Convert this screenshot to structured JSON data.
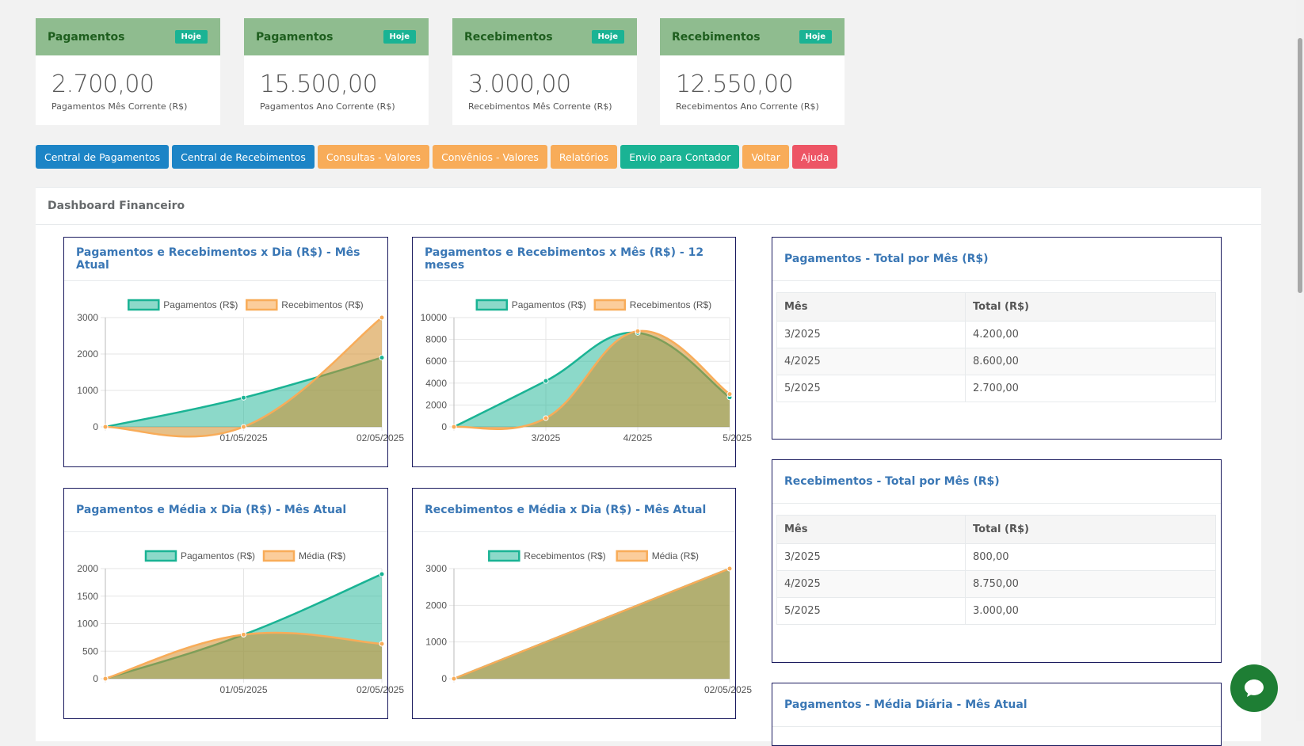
{
  "stats": [
    {
      "title": "Pagamentos",
      "badge": "Hoje",
      "value": "2.700,00",
      "sub": "Pagamentos Mês Corrente (R$)"
    },
    {
      "title": "Pagamentos",
      "badge": "Hoje",
      "value": "15.500,00",
      "sub": "Pagamentos Ano Corrente (R$)"
    },
    {
      "title": "Recebimentos",
      "badge": "Hoje",
      "value": "3.000,00",
      "sub": "Recebimentos Mês Corrente (R$)"
    },
    {
      "title": "Recebimentos",
      "badge": "Hoje",
      "value": "12.550,00",
      "sub": "Recebimentos Ano Corrente (R$)"
    }
  ],
  "buttons": [
    {
      "label": "Central de Pagamentos",
      "color": "#1c84c6"
    },
    {
      "label": "Central de Recebimentos",
      "color": "#1c84c6"
    },
    {
      "label": "Consultas - Valores",
      "color": "#f8ac59"
    },
    {
      "label": "Convênios - Valores",
      "color": "#f8ac59"
    },
    {
      "label": "Relatórios",
      "color": "#f8ac59"
    },
    {
      "label": "Envio para Contador",
      "color": "#1ab394"
    },
    {
      "label": "Voltar",
      "color": "#f8ac59"
    },
    {
      "label": "Ajuda",
      "color": "#ed5565"
    }
  ],
  "dashboard": {
    "title": "Dashboard Financeiro"
  },
  "boxes": {
    "chart1_title": "Pagamentos e Recebimentos x Dia (R$) - Mês Atual",
    "chart2_title": "Pagamentos e Recebimentos x Mês (R$) - 12 meses",
    "chart3_title": "Pagamentos e Média x Dia (R$) - Mês Atual",
    "chart4_title": "Recebimentos e Média x Dia (R$) - Mês Atual",
    "table1_title": "Pagamentos - Total por Mês (R$)",
    "table2_title": "Recebimentos - Total por Mês (R$)",
    "box_bottom_title": "Pagamentos - Média Diária - Mês Atual"
  },
  "tables": {
    "headers": [
      "Mês",
      "Total (R$)"
    ],
    "pagamentos": [
      [
        "3/2025",
        "4.200,00"
      ],
      [
        "4/2025",
        "8.600,00"
      ],
      [
        "5/2025",
        "2.700,00"
      ]
    ],
    "recebimentos": [
      [
        "3/2025",
        "800,00"
      ],
      [
        "4/2025",
        "8.750,00"
      ],
      [
        "5/2025",
        "3.000,00"
      ]
    ]
  },
  "colors": {
    "teal": "#1ab394",
    "orange": "#f8ac59",
    "green_fill": "#6aa86a",
    "title_blue": "#3a77b5"
  },
  "chart_data": [
    {
      "type": "area",
      "title": "Pagamentos e Recebimentos x Dia (R$) - Mês Atual",
      "x": [
        "",
        "01/05/2025",
        "02/05/2025"
      ],
      "ylim": [
        0,
        3000
      ],
      "yticks": [
        0,
        1000,
        2000,
        3000
      ],
      "series": [
        {
          "name": "Pagamentos (R$)",
          "values": [
            0,
            800,
            1900
          ]
        },
        {
          "name": "Recebimentos (R$)",
          "values": [
            0,
            0,
            3000
          ]
        }
      ]
    },
    {
      "type": "area",
      "title": "Pagamentos e Recebimentos x Mês (R$) - 12 meses",
      "x": [
        "",
        "3/2025",
        "4/2025",
        "5/2025"
      ],
      "ylim": [
        0,
        10000
      ],
      "yticks": [
        0,
        2000,
        4000,
        6000,
        8000,
        10000
      ],
      "series": [
        {
          "name": "Pagamentos (R$)",
          "values": [
            0,
            4200,
            8600,
            2700
          ]
        },
        {
          "name": "Recebimentos (R$)",
          "values": [
            0,
            800,
            8750,
            3000
          ]
        }
      ]
    },
    {
      "type": "area",
      "title": "Pagamentos e Média x Dia (R$) - Mês Atual",
      "x": [
        "",
        "01/05/2025",
        "02/05/2025"
      ],
      "ylim": [
        0,
        2000
      ],
      "yticks": [
        0,
        500,
        1000,
        1500,
        2000
      ],
      "series": [
        {
          "name": "Pagamentos (R$)",
          "values": [
            0,
            800,
            1900
          ]
        },
        {
          "name": "Média (R$)",
          "values": [
            0,
            800,
            633
          ]
        }
      ]
    },
    {
      "type": "area",
      "title": "Recebimentos e Média x Dia (R$) - Mês Atual",
      "x": [
        "",
        "02/05/2025"
      ],
      "ylim": [
        0,
        3000
      ],
      "yticks": [
        0,
        1000,
        2000,
        3000
      ],
      "series": [
        {
          "name": "Recebimentos (R$)",
          "values": [
            0,
            3000
          ]
        },
        {
          "name": "Média (R$)",
          "values": [
            0,
            3000
          ]
        }
      ]
    }
  ]
}
